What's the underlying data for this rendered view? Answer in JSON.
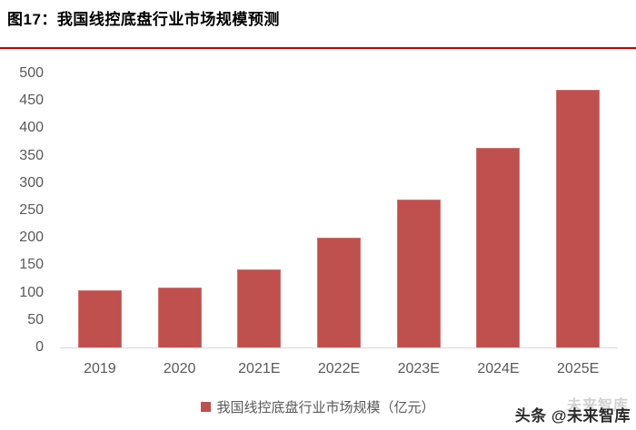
{
  "figure": {
    "title": "图17：我国线控底盘行业市场规模预测"
  },
  "colors": {
    "bar": "#c0504d",
    "bar_border": "#cd7371",
    "rule": "#c00000",
    "axis_text": "#595959",
    "axis_line": "#d9d9d9",
    "title_text": "#000000"
  },
  "chart_data": {
    "type": "bar",
    "title": "图17：我国线控底盘行业市场规模预测",
    "categories": [
      "2019",
      "2020",
      "2021E",
      "2022E",
      "2023E",
      "2024E",
      "2025E"
    ],
    "values": [
      105,
      110,
      143,
      200,
      270,
      365,
      470
    ],
    "series_name": "我国线控底盘行业市场规模（亿元）",
    "xlabel": "",
    "ylabel": "",
    "ylim": [
      0,
      500
    ],
    "ytick_step": 50,
    "grid": false,
    "legend_position": "bottom"
  },
  "legend": {
    "label": "我国线控底盘行业市场规模（亿元）"
  },
  "watermark": {
    "prefix": "头条",
    "at_symbol": "@",
    "name": "未来智库",
    "ghost": "未来智库"
  }
}
